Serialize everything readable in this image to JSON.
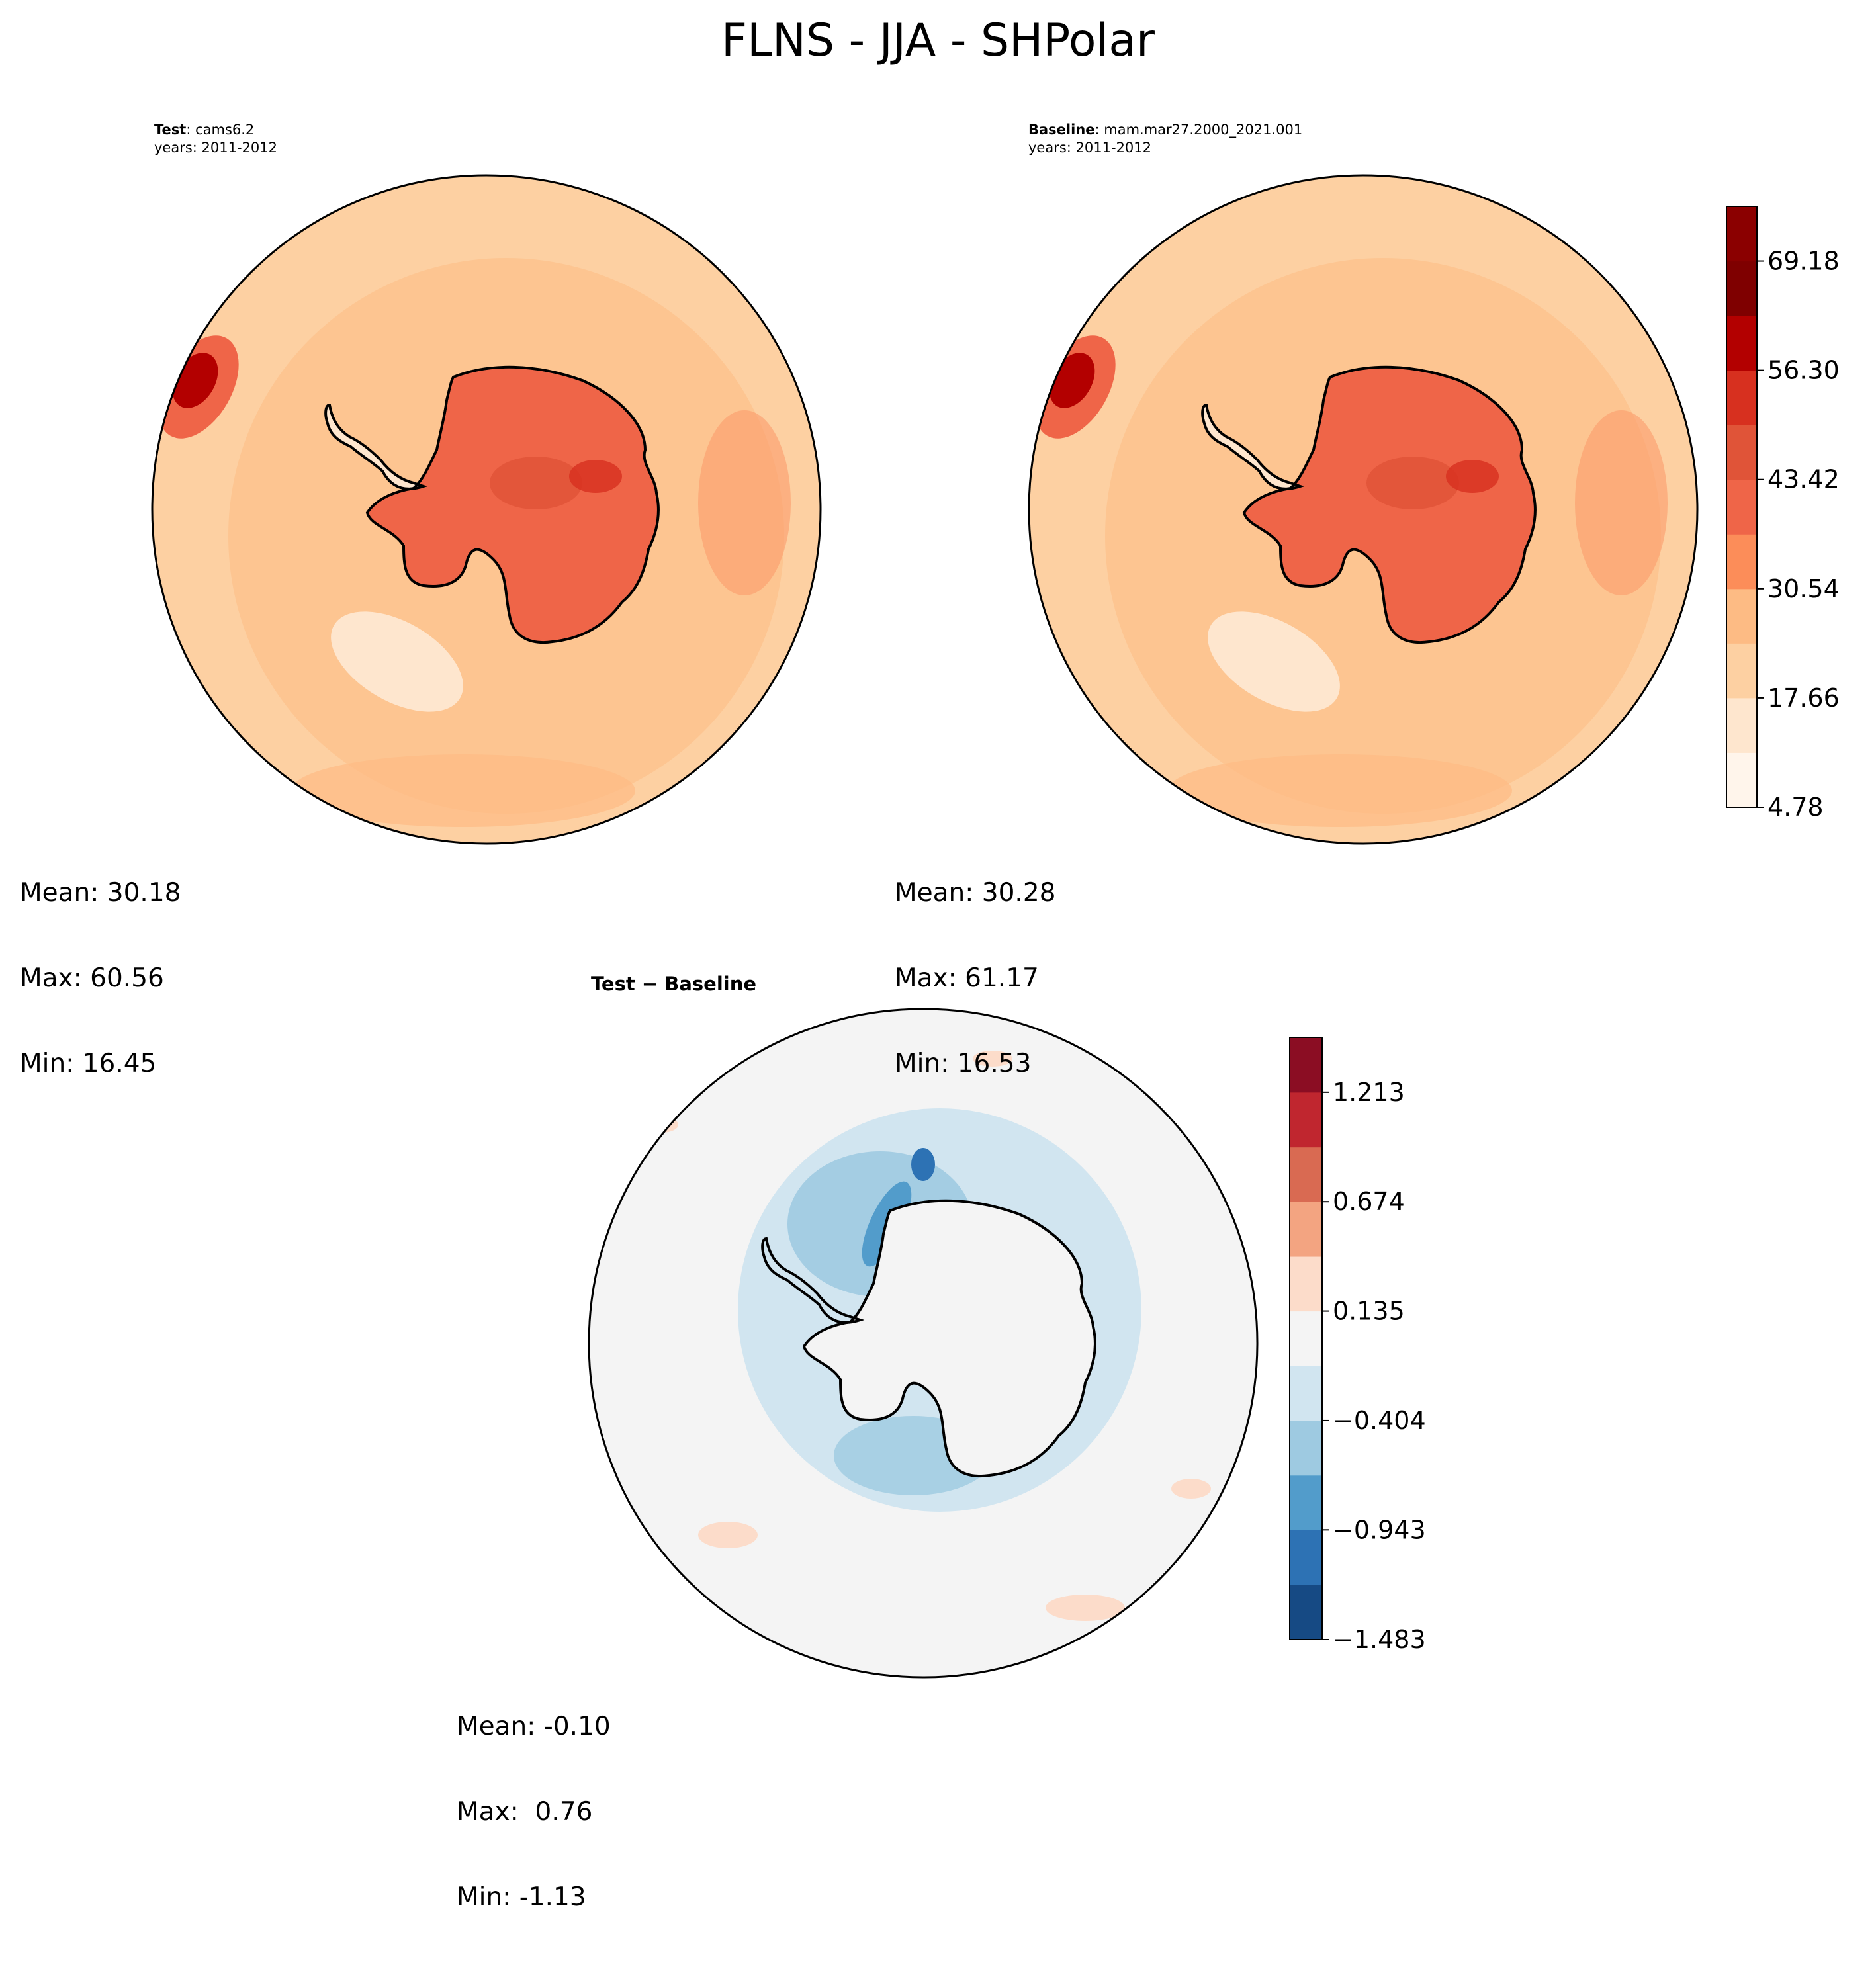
{
  "figure": {
    "title": "FLNS - JJA - SHPolar"
  },
  "chart_data": [
    {
      "type": "contour",
      "panel": "test",
      "label_bold": "Test",
      "label_rest": ": cams6.2",
      "years": "years: 2011-2012",
      "projection": "south-polar-stereographic",
      "stats": {
        "mean": "Mean: 30.18",
        "max": "Max: 60.56",
        "min": "Min: 16.45"
      }
    },
    {
      "type": "contour",
      "panel": "baseline",
      "label_bold": "Baseline",
      "label_rest": ": mam.mar27.2000_2021.001",
      "years": "years: 2011-2012",
      "projection": "south-polar-stereographic",
      "stats": {
        "mean": "Mean: 30.28",
        "max": "Max: 61.17",
        "min": "Min: 16.53"
      }
    },
    {
      "type": "contour",
      "panel": "difference",
      "label": "Test − Baseline",
      "projection": "south-polar-stereographic",
      "stats": {
        "mean": "Mean: -0.10",
        "max": "Max:  0.76",
        "min": "Min: -1.13"
      }
    }
  ],
  "colorbars": {
    "main": {
      "levels": [
        4.78,
        11.22,
        17.66,
        24.1,
        30.54,
        36.98,
        43.42,
        49.86,
        56.3,
        62.74,
        69.18,
        75.62
      ],
      "tick_labels": [
        "69.18",
        "56.30",
        "43.42",
        "30.54",
        "17.66",
        "4.78"
      ],
      "tick_values": [
        69.18,
        56.3,
        43.42,
        30.54,
        17.66,
        4.78
      ],
      "colors": [
        "#fff5eb",
        "#fee6ce",
        "#fdd0a2",
        "#fdbb84",
        "#fc8d59",
        "#ef6548",
        "#e05438",
        "#d7301f",
        "#b30000",
        "#7f0000",
        "#8b0000"
      ]
    },
    "diff": {
      "levels": [
        -1.483,
        -1.213,
        -0.943,
        -0.674,
        -0.404,
        -0.135,
        0.135,
        0.404,
        0.674,
        0.943,
        1.213,
        1.483
      ],
      "tick_labels": [
        "1.213",
        "0.674",
        "0.135",
        "−0.404",
        "−0.943",
        "−1.483"
      ],
      "tick_values": [
        1.213,
        0.674,
        0.135,
        -0.404,
        -0.943,
        -1.483
      ],
      "colors": [
        "#164a84",
        "#2d72b4",
        "#529ccb",
        "#9ecae1",
        "#d1e5f0",
        "#f4f4f4",
        "#fcdcca",
        "#f3a481",
        "#d96a52",
        "#c0262f",
        "#8b0d23"
      ]
    }
  }
}
